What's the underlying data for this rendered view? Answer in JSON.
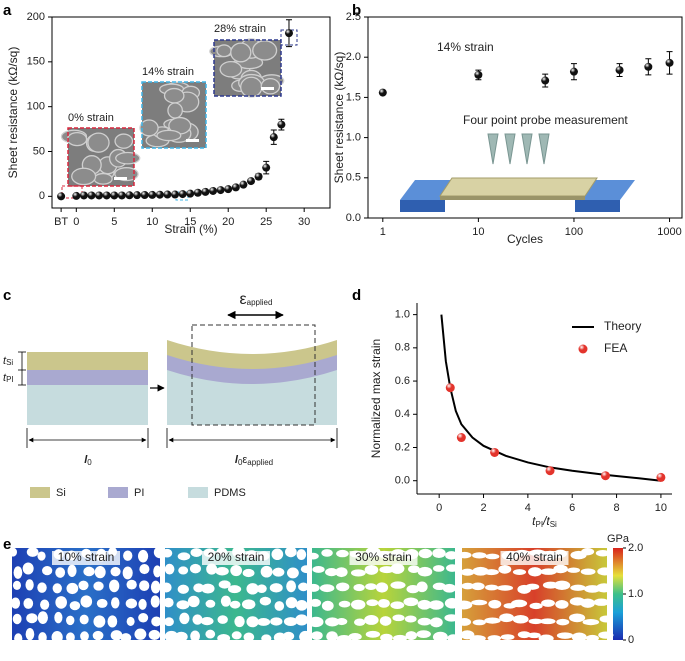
{
  "panel_labels": [
    "a",
    "b",
    "c",
    "d",
    "e"
  ],
  "chart_data": [
    {
      "type": "scatter",
      "frame": true,
      "xlabel": "Strain (%)",
      "ylabel": "Sheet resistance (kΩ/sq)",
      "xlim": [
        -3.2,
        33.4
      ],
      "ylim": [
        -13,
        200
      ],
      "xticks": [
        {
          "value": -2,
          "label": "BT"
        },
        0,
        5,
        10,
        15,
        20,
        25,
        30
      ],
      "yticks": [
        0,
        50,
        100,
        150,
        200
      ],
      "insets": [
        {
          "label": "0% strain",
          "color": "#d8283e"
        },
        {
          "label": "14% strain",
          "color": "#3fb4e6"
        },
        {
          "label": "28% strain",
          "color": "#2e3a8e"
        }
      ],
      "series": [
        {
          "color": "#111111",
          "x": [
            -2,
            0,
            1,
            2,
            3,
            4,
            5,
            6,
            7,
            8,
            9,
            10,
            11,
            12,
            13,
            14,
            15,
            16,
            17,
            18,
            19,
            20,
            21,
            22,
            23,
            24,
            25,
            26,
            27,
            28
          ],
          "values": [
            0,
            0.5,
            1,
            1,
            1,
            1,
            1,
            1,
            1.2,
            1.3,
            1.5,
            1.6,
            1.8,
            2,
            2,
            2.5,
            3,
            4,
            5,
            6,
            7,
            8,
            10,
            13,
            17,
            22,
            32,
            66,
            80,
            182
          ],
          "errors": [
            0,
            0,
            0,
            0,
            0,
            0,
            0,
            0,
            0,
            0,
            0,
            0,
            0,
            0,
            0,
            0,
            0,
            0,
            0,
            0,
            0,
            0,
            0,
            0,
            2,
            3,
            7,
            8,
            6,
            15
          ]
        }
      ]
    },
    {
      "type": "scatter",
      "frame": true,
      "log_x": true,
      "xlabel": "Cycles",
      "ylabel": "Sheet resistance (kΩ/sq)",
      "xlim": [
        0.7,
        1350
      ],
      "ylim": [
        0,
        2.5
      ],
      "xticks": [
        1,
        10,
        100,
        1000
      ],
      "yticks": [
        {
          "value": 0,
          "label": "0.0"
        },
        {
          "value": 0.5,
          "label": "0.5"
        },
        {
          "value": 1,
          "label": "1.0"
        },
        {
          "value": 1.5,
          "label": "1.5"
        },
        {
          "value": 2,
          "label": "2.0"
        },
        {
          "value": 2.5,
          "label": "2.5"
        }
      ],
      "annotations": [
        "14% strain",
        "Four point probe measurement"
      ],
      "series": [
        {
          "color": "#111111",
          "x": [
            1,
            10,
            50,
            100,
            300,
            600,
            1000
          ],
          "values": [
            1.56,
            1.78,
            1.71,
            1.82,
            1.84,
            1.88,
            1.93
          ],
          "errors": [
            0.02,
            0.06,
            0.08,
            0.1,
            0.08,
            0.1,
            0.14
          ]
        }
      ]
    },
    {
      "type": "line",
      "frame": false,
      "legend": "upper right",
      "xlabel_parts": [
        "t",
        "PI",
        "/t",
        "Si"
      ],
      "ylabel": "Normalized max strain",
      "xlim": [
        -1,
        10.5
      ],
      "ylim": [
        -0.08,
        1.07
      ],
      "xticks": [
        0,
        2,
        4,
        6,
        8,
        10
      ],
      "yticks": [
        {
          "value": 0,
          "label": "0.0"
        },
        {
          "value": 0.2,
          "label": "0.2"
        },
        {
          "value": 0.4,
          "label": "0.4"
        },
        {
          "value": 0.6,
          "label": "0.6"
        },
        {
          "value": 0.8,
          "label": "0.8"
        },
        {
          "value": 1,
          "label": "1.0"
        }
      ],
      "series": [
        {
          "name": "Theory",
          "type": "line",
          "color": "#000000",
          "x": [
            0.1,
            0.3,
            0.5,
            0.75,
            1,
            1.5,
            2,
            3,
            4,
            5,
            6,
            7.5,
            9,
            10
          ],
          "values": [
            1.0,
            0.72,
            0.56,
            0.42,
            0.34,
            0.26,
            0.21,
            0.15,
            0.11,
            0.08,
            0.06,
            0.035,
            0.015,
            0.0
          ]
        },
        {
          "name": "FEA",
          "type": "scatter",
          "color": "#e3342c",
          "x": [
            0.5,
            1,
            2.5,
            5,
            7.5,
            10
          ],
          "values": [
            0.56,
            0.26,
            0.17,
            0.06,
            0.03,
            0.02
          ]
        }
      ]
    }
  ],
  "diagram_c": {
    "eps": [
      "ε",
      "applied"
    ],
    "t_si": [
      "t",
      "Si"
    ],
    "t_pi": [
      "t",
      "PI"
    ],
    "l0": [
      "l",
      "0"
    ],
    "l0eps": [
      "l",
      "0",
      "ε",
      "applied"
    ],
    "legend": [
      "Si",
      "PI",
      "PDMS"
    ]
  },
  "panel_e": {
    "labels": [
      "10% strain",
      "20% strain",
      "30% strain",
      "40% strain"
    ],
    "colorbar_unit": "GPa",
    "clim": [
      0,
      2
    ],
    "colorbar_ticks": [
      {
        "value": 2,
        "label": "2.0"
      },
      {
        "value": 1,
        "label": "1.0"
      },
      0
    ]
  }
}
